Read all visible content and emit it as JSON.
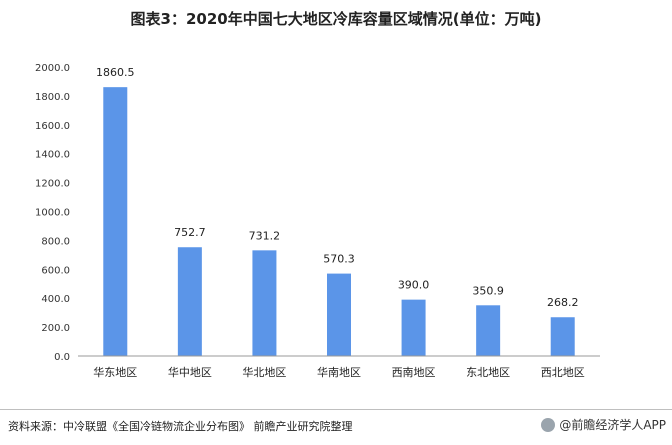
{
  "title": "图表3：2020年中国七大地区冷库容量区域情况(单位：万吨)",
  "source": "资料来源：中冷联盟《全国冷链物流企业分布图》 前瞻产业研究院整理",
  "brand": "@前瞻经济学人APP",
  "colors": {
    "bar": "#5b95e8",
    "axis": "#999999"
  },
  "chart_data": {
    "type": "bar",
    "categories": [
      "华东地区",
      "华中地区",
      "华北地区",
      "华南地区",
      "西南地区",
      "东北地区",
      "西北地区"
    ],
    "values": [
      1860.5,
      752.7,
      731.2,
      570.3,
      390.0,
      350.9,
      268.2
    ],
    "data_labels": [
      "1860.5",
      "752.7",
      "731.2",
      "570.3",
      "390.0",
      "350.9",
      "268.2"
    ],
    "yticks": [
      "0.0",
      "200.0",
      "400.0",
      "600.0",
      "800.0",
      "1000.0",
      "1200.0",
      "1400.0",
      "1600.0",
      "1800.0",
      "2000.0"
    ],
    "ylim": [
      0,
      2000
    ],
    "grid": false,
    "legend": "none"
  }
}
